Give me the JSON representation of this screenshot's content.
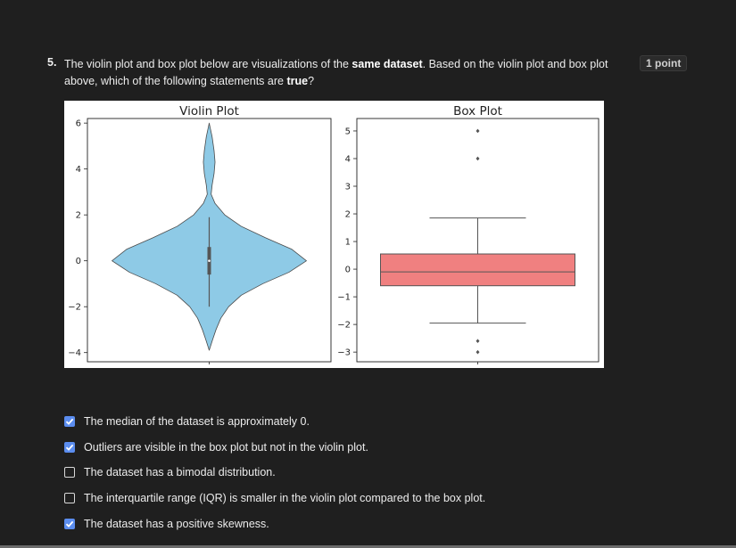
{
  "question": {
    "number": "5.",
    "text_before_bold1": "The violin plot and box plot below are visualizations of the ",
    "bold1": "same dataset",
    "text_between": ". Based on the violin plot and box plot above, which of the following statements are ",
    "bold2": "true",
    "text_after": "?",
    "points": "1 point"
  },
  "options": [
    {
      "label": "The median of the dataset is approximately 0.",
      "checked": true
    },
    {
      "label": "Outliers are visible in the box plot but not in the violin plot.",
      "checked": true
    },
    {
      "label": "The dataset has a bimodal distribution.",
      "checked": false
    },
    {
      "label": "The interquartile range (IQR) is smaller in the violin plot compared to the box plot.",
      "checked": false
    },
    {
      "label": "The dataset has a positive skewness.",
      "checked": true
    }
  ],
  "colors": {
    "checked": "#5b8def",
    "violin_fill": "#8ecae6",
    "box_fill": "#f08080"
  },
  "chart_data": [
    {
      "type": "violin",
      "title": "Violin Plot",
      "ylim": [
        -4.4,
        6.2
      ],
      "yticks": [
        6,
        4,
        2,
        0,
        -2,
        -4
      ],
      "ytick_labels": [
        "6",
        "4",
        "2",
        "0",
        "−2",
        "−4"
      ],
      "density_profile": [
        {
          "y": -3.9,
          "w": 0.0
        },
        {
          "y": -3.5,
          "w": 0.03
        },
        {
          "y": -3.0,
          "w": 0.07
        },
        {
          "y": -2.5,
          "w": 0.12
        },
        {
          "y": -2.0,
          "w": 0.2
        },
        {
          "y": -1.5,
          "w": 0.33
        },
        {
          "y": -1.0,
          "w": 0.55
        },
        {
          "y": -0.5,
          "w": 0.82
        },
        {
          "y": 0.0,
          "w": 1.0
        },
        {
          "y": 0.5,
          "w": 0.85
        },
        {
          "y": 1.0,
          "w": 0.58
        },
        {
          "y": 1.5,
          "w": 0.33
        },
        {
          "y": 2.0,
          "w": 0.16
        },
        {
          "y": 2.5,
          "w": 0.06
        },
        {
          "y": 2.9,
          "w": 0.02
        },
        {
          "y": 3.3,
          "w": 0.03
        },
        {
          "y": 3.8,
          "w": 0.05
        },
        {
          "y": 4.3,
          "w": 0.06
        },
        {
          "y": 4.8,
          "w": 0.05
        },
        {
          "y": 5.4,
          "w": 0.03
        },
        {
          "y": 6.0,
          "w": 0.0
        }
      ],
      "inner_box": {
        "q1": -0.6,
        "q3": 0.6,
        "median": 0.0,
        "whisker_low": -2.0,
        "whisker_high": 1.9
      }
    },
    {
      "type": "box",
      "title": "Box Plot",
      "ylim": [
        -3.35,
        5.45
      ],
      "yticks": [
        5,
        4,
        3,
        2,
        1,
        0,
        -1,
        -2,
        -3
      ],
      "ytick_labels": [
        "5",
        "4",
        "3",
        "2",
        "1",
        "0",
        "−1",
        "−2",
        "−3"
      ],
      "q1": -0.6,
      "median": -0.1,
      "q3": 0.55,
      "whisker_low": -1.95,
      "whisker_high": 1.85,
      "outliers": [
        5.0,
        4.0,
        -2.6,
        -3.0
      ]
    }
  ]
}
